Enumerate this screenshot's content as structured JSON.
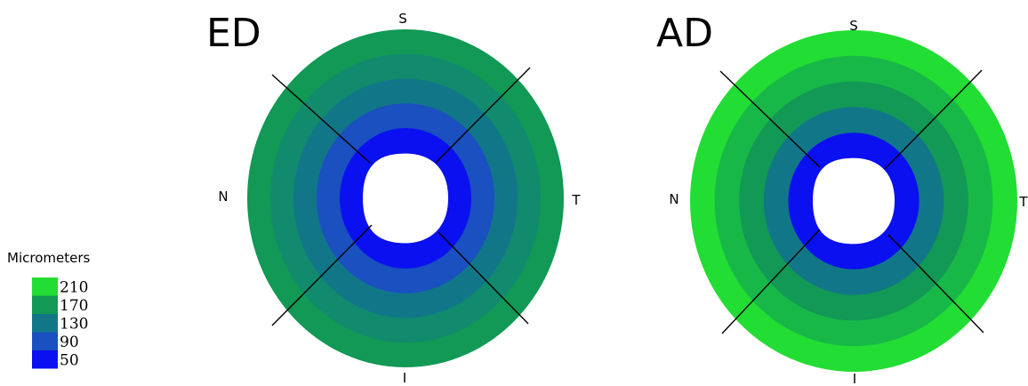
{
  "legend": {
    "title": "Micrometers",
    "items": [
      {
        "label": "210",
        "color": "#22dd33"
      },
      {
        "label": "170",
        "color": "#119955"
      },
      {
        "label": "130",
        "color": "#117788"
      },
      {
        "label": "90",
        "color": "#1a50c0"
      },
      {
        "label": "50",
        "color": "#0a10f0"
      }
    ]
  },
  "panels": [
    {
      "id": "ed",
      "title": "ED",
      "labels": {
        "superior": "S",
        "nasal": "N",
        "temporal": "T",
        "inferior": "I"
      },
      "ring_colors": [
        "#0a10f0",
        "#1a50c0",
        "#117788",
        "#118a6e",
        "#119955"
      ]
    },
    {
      "id": "ad",
      "title": "AD",
      "labels": {
        "superior": "S",
        "nasal": "N",
        "temporal": "T",
        "inferior": "I"
      },
      "ring_colors": [
        "#0a10f0",
        "#117788",
        "#119955",
        "#18b848",
        "#22dd33"
      ]
    }
  ]
}
